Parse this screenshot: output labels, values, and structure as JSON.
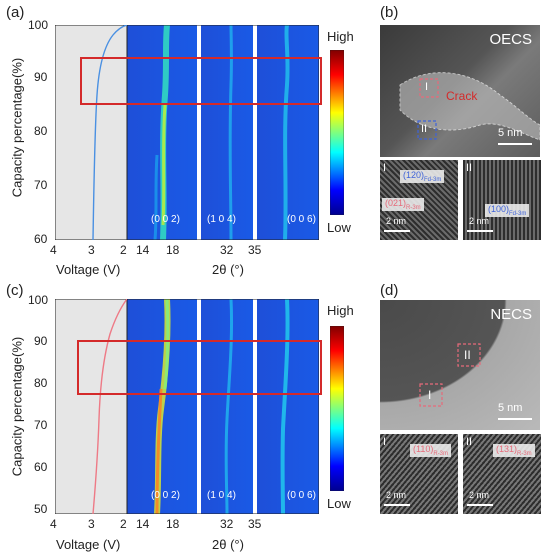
{
  "panels": {
    "a": {
      "label": "(a)",
      "y_axis_title": "Capacity percentage(%)",
      "y_ticks": [
        "100",
        "90",
        "80",
        "70",
        "60"
      ],
      "voltage": {
        "title": "Voltage (V)",
        "ticks": [
          "4",
          "3",
          "2"
        ],
        "curve_color": "#4a90e2"
      },
      "two_theta": {
        "title": "2θ (°)",
        "ticks": [
          "14",
          "18",
          "32",
          "35"
        ]
      },
      "reflections": [
        "(0 0 2)",
        "(1 0 4)",
        "(0 0 6)"
      ],
      "colorbar": {
        "high": "High",
        "low": "Low"
      }
    },
    "b": {
      "label": "(b)",
      "sample": "OECS",
      "crack": "Crack",
      "region_1": "I",
      "region_2": "II",
      "scale_main": "5 nm",
      "inset_1": {
        "region": "I",
        "idx1": "(120)",
        "sub1": "Fd-3m",
        "idx2": "(021)",
        "sub2": "R-3m",
        "scale": "2 nm"
      },
      "inset_2": {
        "region": "II",
        "idx1": "(100)",
        "sub1": "Fd-3m",
        "scale": "2 nm"
      }
    },
    "c": {
      "label": "(c)",
      "y_axis_title": "Capacity percentage(%)",
      "y_ticks": [
        "100",
        "90",
        "80",
        "70",
        "60",
        "50"
      ],
      "voltage": {
        "title": "Voltage (V)",
        "ticks": [
          "4",
          "3",
          "2"
        ],
        "curve_color": "#ee7a86"
      },
      "two_theta": {
        "title": "2θ (°)",
        "ticks": [
          "14",
          "18",
          "32",
          "35"
        ]
      },
      "reflections": [
        "(0 0 2)",
        "(1 0 4)",
        "(0 0 6)"
      ],
      "colorbar": {
        "high": "High",
        "low": "Low"
      }
    },
    "d": {
      "label": "(d)",
      "sample": "NECS",
      "region_1": "I",
      "region_2": "II",
      "scale_main": "5 nm",
      "inset_1": {
        "region": "I",
        "idx1": "(110)",
        "sub1": "R-3m",
        "scale": "2 nm"
      },
      "inset_2": {
        "region": "II",
        "idx1": "(131)",
        "sub1": "R-3m",
        "scale": "2 nm"
      }
    }
  },
  "colors": {
    "box_red": "#d42a2a",
    "voltage_bg": "#e6e6e6"
  }
}
